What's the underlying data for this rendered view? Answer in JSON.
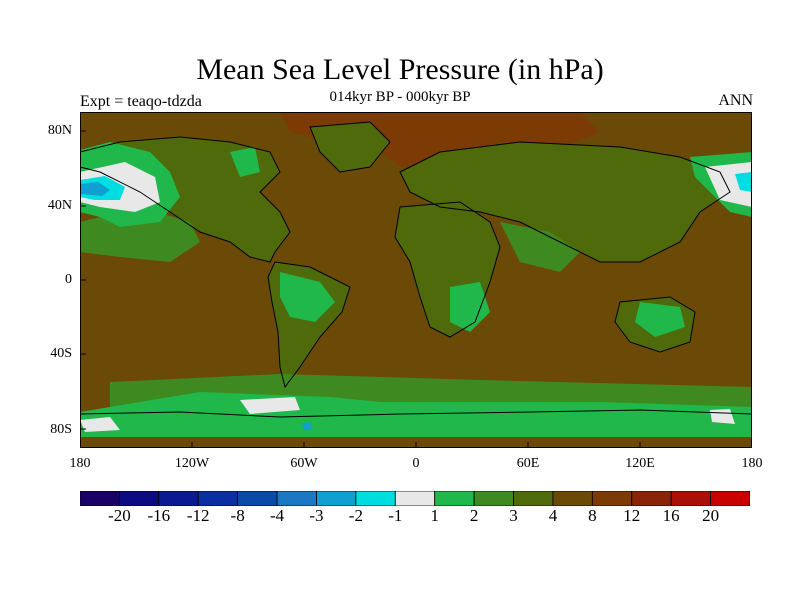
{
  "title": "Mean Sea Level Pressure (in hPa)",
  "subtitle": "014kyr BP - 000kyr BP",
  "left_label": "Expt = teaqo-tdzda",
  "right_label": "ANN",
  "lat_ticks": [
    "80N",
    "40N",
    "0",
    "40S",
    "80S"
  ],
  "lon_ticks": [
    "180",
    "120W",
    "60W",
    "0",
    "60E",
    "120E",
    "180"
  ],
  "colorbar": {
    "labels": [
      "-20",
      "-16",
      "-12",
      "-8",
      "-4",
      "-3",
      "-2",
      "-1",
      "1",
      "2",
      "3",
      "4",
      "8",
      "12",
      "16",
      "20"
    ],
    "colors": [
      "#1a0066",
      "#0c0a80",
      "#0a1a90",
      "#0b2ea0",
      "#0a4aa8",
      "#1a78c4",
      "#109fd0",
      "#00dde0",
      "#e8e8e8",
      "#20b84a",
      "#3f8a20",
      "#4f6a0a",
      "#6a4a06",
      "#7c3a05",
      "#8a2308",
      "#a81008",
      "#c80000"
    ]
  },
  "map_colors": {
    "ocean_base": "#6a4a06",
    "land_base": "#4f6a0a",
    "high": "#7c3a05",
    "mid": "#3f8a20",
    "low": "#20b84a",
    "neutral": "#e8e8e8",
    "neg1": "#00dde0",
    "neg2": "#109fd0",
    "coast": "#000000"
  }
}
